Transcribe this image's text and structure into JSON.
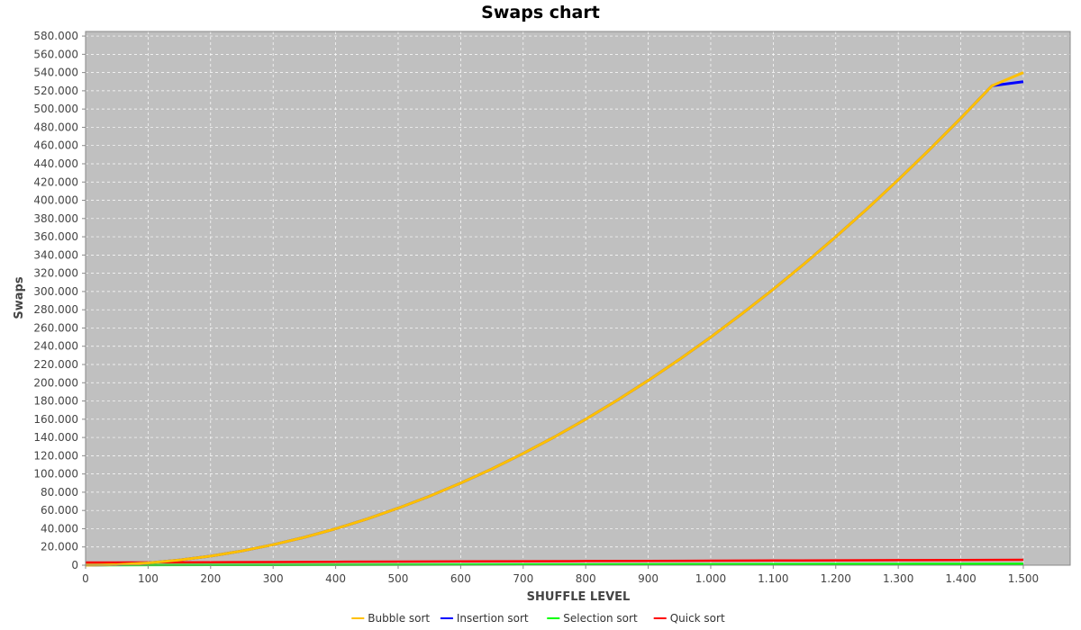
{
  "chart_data": {
    "type": "line",
    "title": "Swaps chart",
    "xlabel": "SHUFFLE LEVEL",
    "ylabel": "Swaps",
    "xlim": [
      0,
      1575
    ],
    "ylim": [
      0,
      585000
    ],
    "xticks": [
      0,
      100,
      200,
      300,
      400,
      500,
      600,
      700,
      800,
      900,
      1000,
      1100,
      1200,
      1300,
      1400,
      1500
    ],
    "xtick_labels": [
      "0",
      "100",
      "200",
      "300",
      "400",
      "500",
      "600",
      "700",
      "800",
      "900",
      "1.000",
      "1.100",
      "1.200",
      "1.300",
      "1.400",
      "1.500"
    ],
    "yticks": [
      0,
      20000,
      40000,
      60000,
      80000,
      100000,
      120000,
      140000,
      160000,
      180000,
      200000,
      220000,
      240000,
      260000,
      280000,
      300000,
      320000,
      340000,
      360000,
      380000,
      400000,
      420000,
      440000,
      460000,
      480000,
      500000,
      520000,
      540000,
      560000,
      580000
    ],
    "ytick_labels": [
      "0",
      "20.000",
      "40.000",
      "60.000",
      "80.000",
      "100.000",
      "120.000",
      "140.000",
      "160.000",
      "180.000",
      "200.000",
      "220.000",
      "240.000",
      "260.000",
      "280.000",
      "300.000",
      "320.000",
      "340.000",
      "360.000",
      "380.000",
      "400.000",
      "420.000",
      "440.000",
      "460.000",
      "480.000",
      "500.000",
      "520.000",
      "540.000",
      "560.000",
      "580.000"
    ],
    "grid": true,
    "legend_position": "bottom",
    "background_color": "#c0c0c0",
    "grid_color": "#ffffff",
    "series": [
      {
        "name": "Bubble sort",
        "color": "#ffc000",
        "x": [
          0,
          50,
          100,
          150,
          200,
          250,
          300,
          350,
          400,
          450,
          500,
          550,
          600,
          650,
          700,
          750,
          800,
          850,
          900,
          950,
          1000,
          1050,
          1100,
          1150,
          1200,
          1250,
          1300,
          1350,
          1400,
          1450,
          1500
        ],
        "y": [
          0,
          600,
          2500,
          5600,
          10000,
          15600,
          22500,
          30600,
          40000,
          50600,
          62500,
          75600,
          90000,
          105600,
          122500,
          140600,
          160000,
          180600,
          202500,
          225600,
          250000,
          275600,
          302500,
          330600,
          360000,
          390600,
          422500,
          455600,
          490000,
          525600,
          540000
        ]
      },
      {
        "name": "Insertion sort",
        "color": "#0000ff",
        "x": [
          0,
          50,
          100,
          150,
          200,
          250,
          300,
          350,
          400,
          450,
          500,
          550,
          600,
          650,
          700,
          750,
          800,
          850,
          900,
          950,
          1000,
          1050,
          1100,
          1150,
          1200,
          1250,
          1300,
          1350,
          1400,
          1450,
          1500
        ],
        "y": [
          0,
          600,
          2500,
          5600,
          10000,
          15600,
          22500,
          30600,
          40000,
          50600,
          62500,
          75600,
          90000,
          105600,
          122500,
          140600,
          160000,
          180600,
          202500,
          225600,
          250000,
          275600,
          302500,
          330600,
          360000,
          390600,
          422500,
          455600,
          490000,
          525600,
          530000
        ]
      },
      {
        "name": "Selection sort",
        "color": "#00ff00",
        "x": [
          0,
          100,
          200,
          300,
          400,
          500,
          600,
          700,
          800,
          900,
          1000,
          1100,
          1200,
          1300,
          1400,
          1500
        ],
        "y": [
          0,
          100,
          200,
          300,
          400,
          500,
          600,
          700,
          800,
          900,
          1000,
          1100,
          1200,
          1300,
          1400,
          1500
        ]
      },
      {
        "name": "Quick sort",
        "color": "#ff0000",
        "x": [
          0,
          100,
          200,
          300,
          400,
          500,
          600,
          700,
          800,
          900,
          1000,
          1100,
          1200,
          1300,
          1400,
          1500
        ],
        "y": [
          3000,
          3100,
          3300,
          3500,
          3700,
          3900,
          4100,
          4300,
          4500,
          4700,
          4900,
          5100,
          5300,
          5500,
          5700,
          5900
        ]
      }
    ]
  }
}
